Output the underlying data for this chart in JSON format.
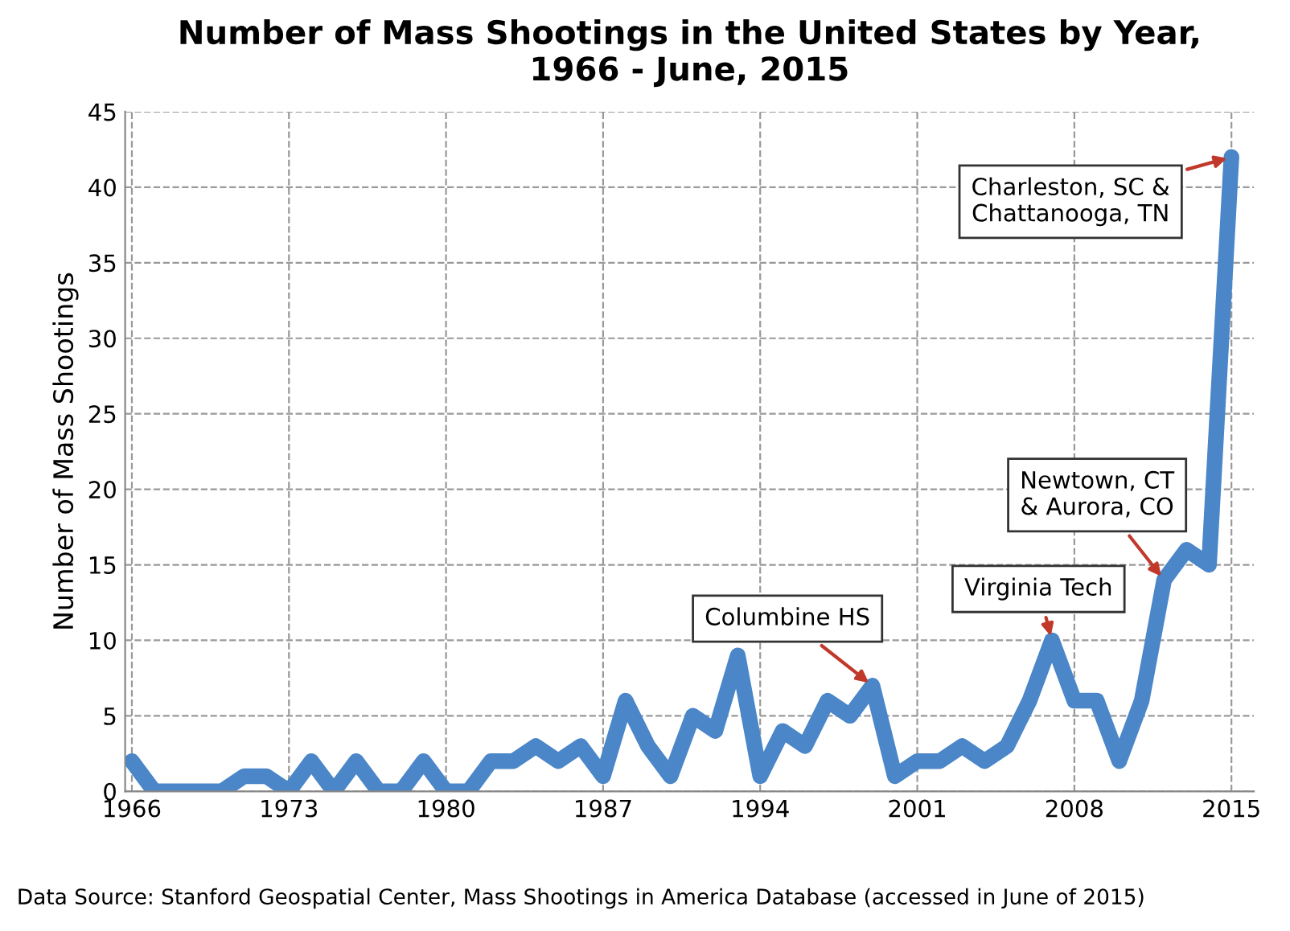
{
  "chart_data": {
    "type": "line",
    "title": "Number of Mass Shootings in the United States by Year,\n1966 - June, 2015",
    "ylabel": "Number of Mass Shootings",
    "x": [
      1966,
      1967,
      1968,
      1969,
      1970,
      1971,
      1972,
      1973,
      1974,
      1975,
      1976,
      1977,
      1978,
      1979,
      1980,
      1981,
      1982,
      1983,
      1984,
      1985,
      1986,
      1987,
      1988,
      1989,
      1990,
      1991,
      1992,
      1993,
      1994,
      1995,
      1996,
      1997,
      1998,
      1999,
      2000,
      2001,
      2002,
      2003,
      2004,
      2005,
      2006,
      2007,
      2008,
      2009,
      2010,
      2011,
      2012,
      2013,
      2014,
      2015
    ],
    "series": [
      {
        "color": "#4a86c8",
        "values": [
          2,
          0,
          0,
          0,
          0,
          1,
          1,
          0,
          2,
          0,
          2,
          0,
          0,
          2,
          0,
          0,
          2,
          2,
          3,
          2,
          3,
          1,
          6,
          3,
          1,
          5,
          4,
          9,
          1,
          4,
          3,
          6,
          5,
          7,
          1,
          2,
          2,
          3,
          2,
          3,
          6,
          10,
          6,
          6,
          2,
          6,
          14,
          16,
          15,
          42
        ]
      }
    ],
    "xlim": [
      1965.7,
      2016
    ],
    "xticks": [
      1966,
      1973,
      1980,
      1987,
      1994,
      2001,
      2008,
      2015
    ],
    "ylim": [
      0,
      45
    ],
    "yticks": [
      0,
      5,
      10,
      15,
      20,
      25,
      30,
      35,
      40,
      45
    ],
    "grid": true,
    "marker": "none",
    "line_style": "solid",
    "legend": false,
    "annotations": [
      {
        "text": "Columbine HS",
        "x": 1999,
        "y": 7
      },
      {
        "text": "Virginia Tech",
        "x": 2007,
        "y": 10
      },
      {
        "text": "Newtown, CT\n& Aurora, CO",
        "x": 2012,
        "y": 14
      },
      {
        "text": "Charleston, SC &\nChattanooga, TN",
        "x": 2015,
        "y": 42
      },
      "Data Source: Stanford Geospatial Center, Mass Shootings in America Database (accessed in June of 2015)"
    ]
  }
}
